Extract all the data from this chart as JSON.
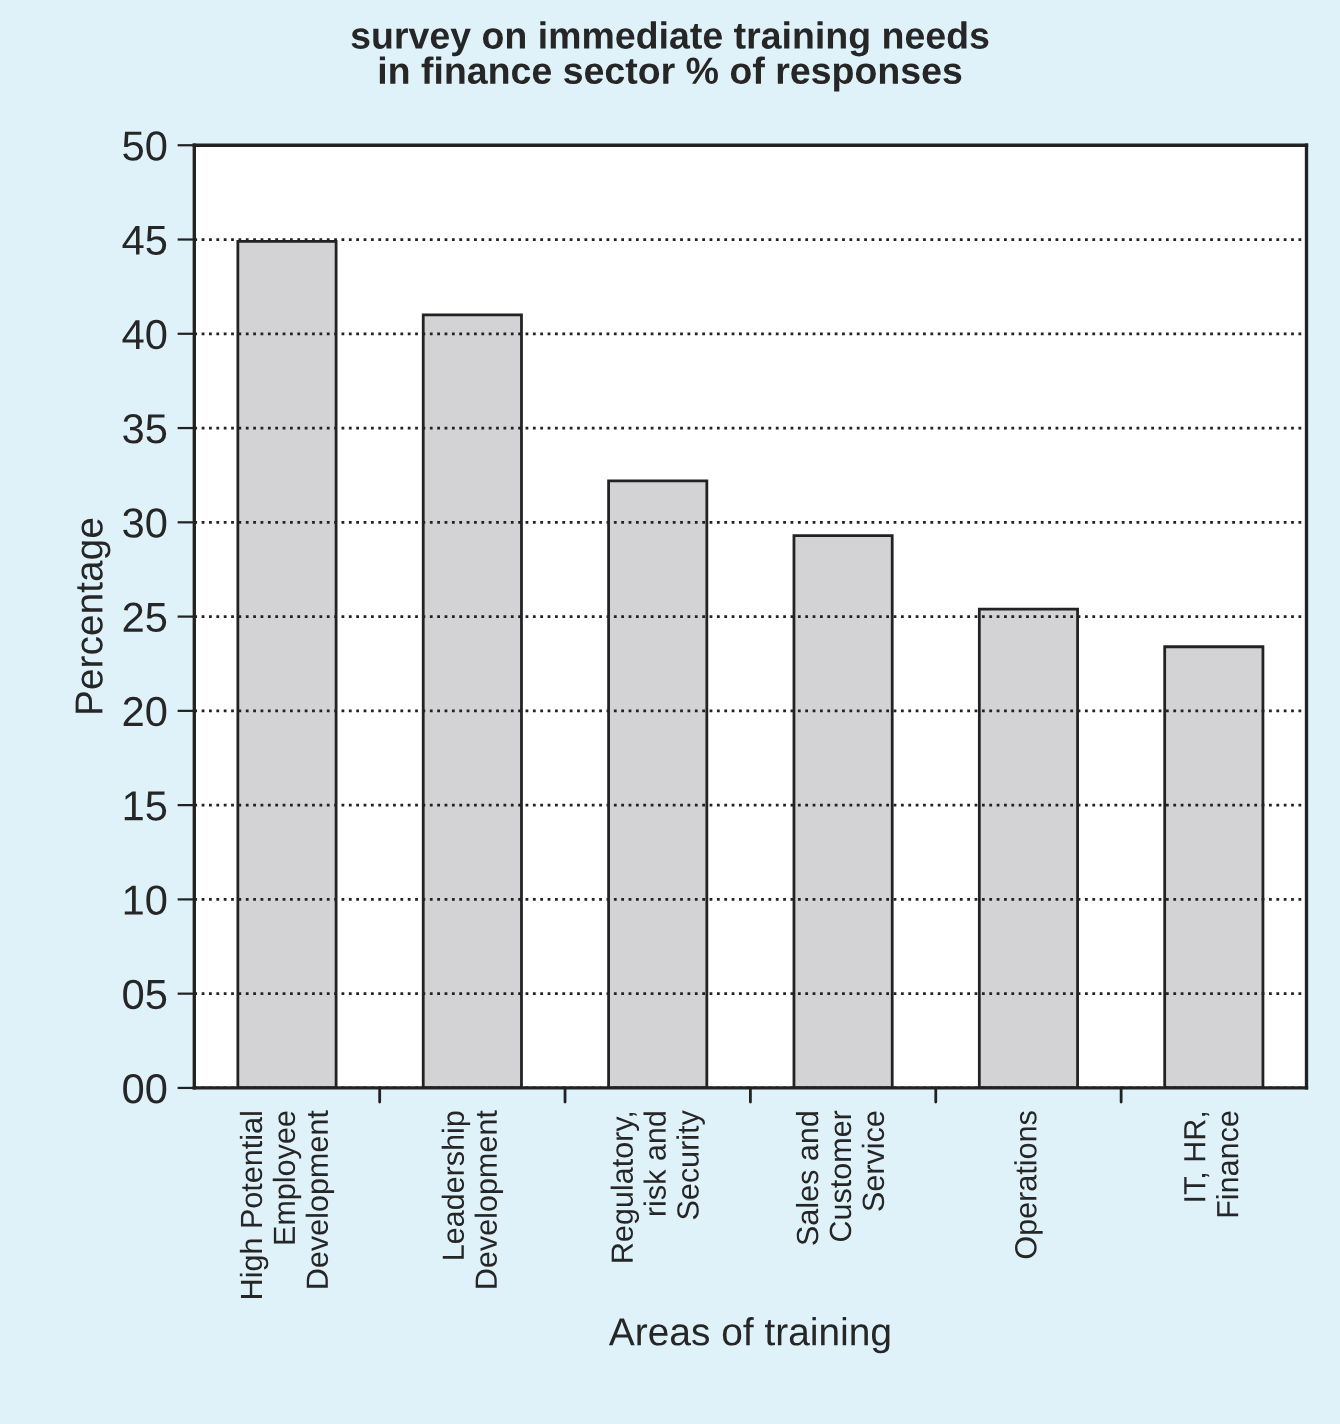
{
  "chart_data": {
    "type": "bar",
    "title": "survey on immediate training needs\nin finance sector % of responses",
    "xlabel": "Areas of training",
    "ylabel": "Percentage",
    "categories": [
      "High Potential\nEmployee\nDevelopment",
      "Leadership\nDevelopment",
      "Regulatory,\nrisk and\nSecurity",
      "Sales and\nCustomer\nService",
      "Operations",
      "IT, HR,\nFinance"
    ],
    "values": [
      44.9,
      41.0,
      32.2,
      29.3,
      25.4,
      23.4
    ],
    "color": "#d3d3d6",
    "ylim": [
      0,
      50
    ],
    "yticks": [
      {
        "value": 0,
        "label": "00"
      },
      {
        "value": 5,
        "label": "05"
      },
      10,
      15,
      20,
      25,
      30,
      35,
      40,
      45,
      50
    ],
    "grid": "y",
    "line_style": "dotted"
  }
}
